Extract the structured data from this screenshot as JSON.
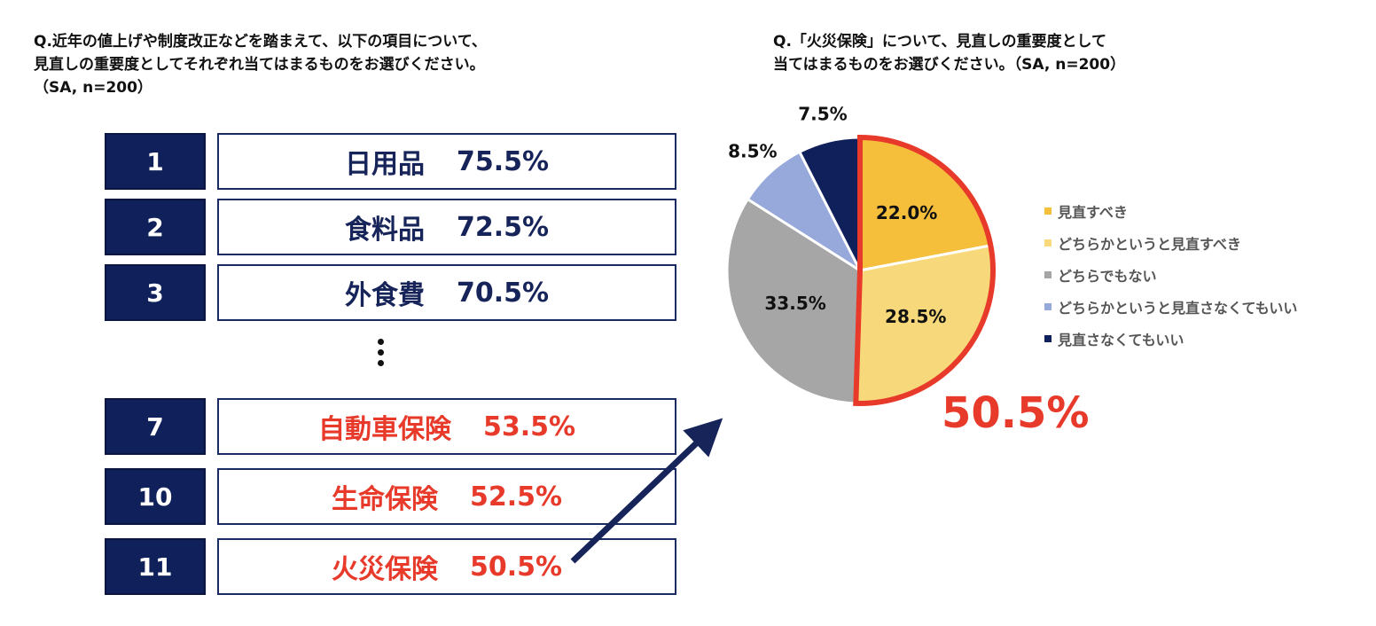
{
  "left_question": {
    "lines": [
      "Q.近年の値上げや制度改正などを踏まえて、以下の項目について、",
      "見直しの重要度としてそれぞれ当てはまるものをお選びください。",
      "（SA, n=200）"
    ]
  },
  "right_question": {
    "lines": [
      "Q.「火災保険」について、見直しの重要度として",
      "当てはまるものをお選びください。（SA, n=200）"
    ]
  },
  "ranking": [
    {
      "rank": "1",
      "item": "日用品",
      "pct": "75.5%",
      "highlight": false
    },
    {
      "rank": "2",
      "item": "食料品",
      "pct": "72.5%",
      "highlight": false
    },
    {
      "rank": "3",
      "item": "外食費",
      "pct": "70.5%",
      "highlight": false
    },
    {
      "rank": "7",
      "item": "自動車保険",
      "pct": "53.5%",
      "highlight": true
    },
    {
      "rank": "10",
      "item": "生命保険",
      "pct": "52.5%",
      "highlight": true
    },
    {
      "rank": "11",
      "item": "火災保険",
      "pct": "50.5%",
      "highlight": true
    }
  ],
  "colors": {
    "navy": "#10205a",
    "highlight_red": "#e83a2a",
    "arrow": "#16245a"
  },
  "highlight_total": "50.5%",
  "chart_data": {
    "type": "pie",
    "title": "",
    "categories": [
      "見直すべき",
      "どちらかというと見直すべき",
      "どちらでもない",
      "どちらかというと見直さなくてもいい",
      "見直さなくてもいい"
    ],
    "values": [
      22.0,
      28.5,
      33.5,
      8.5,
      7.5
    ],
    "labels": [
      "22.0%",
      "28.5%",
      "33.5%",
      "8.5%",
      "7.5%"
    ],
    "colors": [
      "#f5bf3c",
      "#f7d87a",
      "#a6a6a6",
      "#97a8da",
      "#10205a"
    ],
    "label_colors": [
      "#111111",
      "#111111",
      "#111111",
      "#111111",
      "#111111"
    ],
    "start": "12 o'clock, clockwise",
    "highlighted_slices": [
      0,
      1
    ],
    "legend_position": "right"
  }
}
